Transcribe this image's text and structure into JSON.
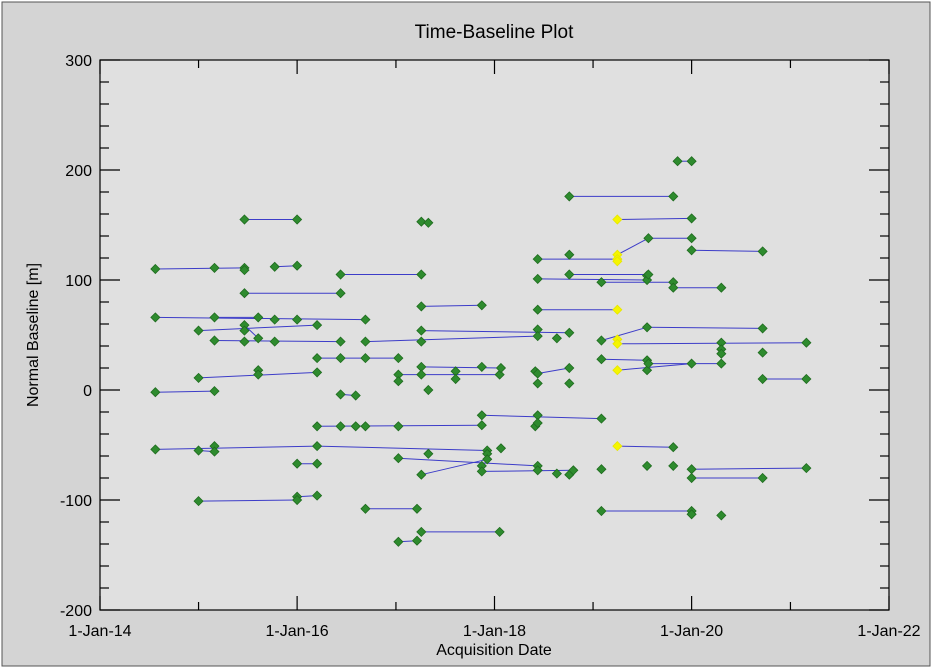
{
  "chart_data": {
    "type": "scatter",
    "title": "Time-Baseline Plot",
    "xlabel": "Acquisition Date",
    "ylabel": "Normal Baseline [m]",
    "x_axis": {
      "type": "date",
      "range": [
        "2014-01-01",
        "2022-01-01"
      ],
      "tick_labels": [
        {
          "date": "2014-01-01",
          "label": "1-Jan-14"
        },
        {
          "date": "2016-01-01",
          "label": "1-Jan-16"
        },
        {
          "date": "2018-01-01",
          "label": "1-Jan-18"
        },
        {
          "date": "2020-01-01",
          "label": "1-Jan-20"
        },
        {
          "date": "2022-01-01",
          "label": "1-Jan-22"
        }
      ]
    },
    "y_axis": {
      "range": [
        -200,
        300
      ],
      "ticks": [
        -200,
        -100,
        0,
        100,
        200,
        300
      ]
    },
    "grid": false,
    "colors": {
      "acquisition": "#2e8b2e",
      "reference": "#f5f500",
      "connection": "#3c3cc8",
      "plot_background": "#e0e0e0",
      "panel_background": "#d4d4d4"
    },
    "acquisitions": [
      [
        "2014-07-25",
        110
      ],
      [
        "2014-07-25",
        66
      ],
      [
        "2014-07-25",
        -2
      ],
      [
        "2014-07-25",
        -54
      ],
      [
        "2015-01-01",
        54
      ],
      [
        "2015-01-01",
        11
      ],
      [
        "2015-01-01",
        -55
      ],
      [
        "2015-01-01",
        -101
      ],
      [
        "2015-03-01",
        111
      ],
      [
        "2015-03-01",
        66
      ],
      [
        "2015-03-01",
        45
      ],
      [
        "2015-03-01",
        -1
      ],
      [
        "2015-03-01",
        -51
      ],
      [
        "2015-03-01",
        -56
      ],
      [
        "2015-06-20",
        155
      ],
      [
        "2015-06-20",
        111
      ],
      [
        "2015-06-20",
        109
      ],
      [
        "2015-06-20",
        88
      ],
      [
        "2015-06-20",
        59
      ],
      [
        "2015-06-20",
        54
      ],
      [
        "2015-06-20",
        44
      ],
      [
        "2015-08-10",
        66
      ],
      [
        "2015-08-10",
        47
      ],
      [
        "2015-08-10",
        18
      ],
      [
        "2015-08-10",
        14
      ],
      [
        "2015-10-10",
        112
      ],
      [
        "2015-10-10",
        64
      ],
      [
        "2015-10-10",
        44
      ],
      [
        "2016-01-01",
        155
      ],
      [
        "2016-01-01",
        113
      ],
      [
        "2016-01-01",
        64
      ],
      [
        "2016-01-01",
        -67
      ],
      [
        "2016-01-01",
        -97
      ],
      [
        "2016-01-01",
        -100
      ],
      [
        "2016-03-15",
        59
      ],
      [
        "2016-03-15",
        29
      ],
      [
        "2016-03-15",
        16
      ],
      [
        "2016-03-15",
        -33
      ],
      [
        "2016-03-15",
        -51
      ],
      [
        "2016-03-15",
        -67
      ],
      [
        "2016-03-15",
        -96
      ],
      [
        "2016-06-10",
        105
      ],
      [
        "2016-06-10",
        88
      ],
      [
        "2016-06-10",
        44
      ],
      [
        "2016-06-10",
        29
      ],
      [
        "2016-06-10",
        -4
      ],
      [
        "2016-06-10",
        -33
      ],
      [
        "2016-08-05",
        -5
      ],
      [
        "2016-08-05",
        -33
      ],
      [
        "2016-09-10",
        64
      ],
      [
        "2016-09-10",
        44
      ],
      [
        "2016-09-10",
        29
      ],
      [
        "2016-09-10",
        -33
      ],
      [
        "2016-09-10",
        -108
      ],
      [
        "2017-01-10",
        29
      ],
      [
        "2017-01-10",
        14
      ],
      [
        "2017-01-10",
        8
      ],
      [
        "2017-01-10",
        -33
      ],
      [
        "2017-01-10",
        -62
      ],
      [
        "2017-01-10",
        -138
      ],
      [
        "2017-03-20",
        -108
      ],
      [
        "2017-03-20",
        -137
      ],
      [
        "2017-04-05",
        153
      ],
      [
        "2017-04-05",
        105
      ],
      [
        "2017-04-05",
        76
      ],
      [
        "2017-04-05",
        54
      ],
      [
        "2017-04-05",
        44
      ],
      [
        "2017-04-05",
        21
      ],
      [
        "2017-04-05",
        14
      ],
      [
        "2017-04-05",
        -77
      ],
      [
        "2017-04-05",
        -129
      ],
      [
        "2017-05-01",
        152
      ],
      [
        "2017-05-01",
        0
      ],
      [
        "2017-05-01",
        -58
      ],
      [
        "2017-08-10",
        17
      ],
      [
        "2017-08-10",
        10
      ],
      [
        "2017-11-15",
        77
      ],
      [
        "2017-11-15",
        21
      ],
      [
        "2017-11-15",
        -23
      ],
      [
        "2017-11-15",
        -32
      ],
      [
        "2017-11-15",
        -69
      ],
      [
        "2017-11-15",
        -74
      ],
      [
        "2017-12-05",
        -55
      ],
      [
        "2017-12-05",
        -58
      ],
      [
        "2017-12-05",
        -63
      ],
      [
        "2018-01-20",
        14
      ],
      [
        "2018-01-20",
        -129
      ],
      [
        "2018-01-25",
        20
      ],
      [
        "2018-01-25",
        -53
      ],
      [
        "2018-06-01",
        17
      ],
      [
        "2018-06-01",
        -33
      ],
      [
        "2018-06-10",
        119
      ],
      [
        "2018-06-10",
        101
      ],
      [
        "2018-06-10",
        73
      ],
      [
        "2018-06-10",
        55
      ],
      [
        "2018-06-10",
        49
      ],
      [
        "2018-06-10",
        15
      ],
      [
        "2018-06-10",
        6
      ],
      [
        "2018-06-10",
        -23
      ],
      [
        "2018-06-10",
        -30
      ],
      [
        "2018-06-10",
        -69
      ],
      [
        "2018-06-10",
        -73
      ],
      [
        "2018-08-20",
        47
      ],
      [
        "2018-08-20",
        -76
      ],
      [
        "2018-10-05",
        176
      ],
      [
        "2018-10-05",
        123
      ],
      [
        "2018-10-05",
        105
      ],
      [
        "2018-10-05",
        52
      ],
      [
        "2018-10-05",
        20
      ],
      [
        "2018-10-05",
        6
      ],
      [
        "2018-10-05",
        -77
      ],
      [
        "2018-10-20",
        -73
      ],
      [
        "2019-02-01",
        98
      ],
      [
        "2019-02-01",
        45
      ],
      [
        "2019-02-01",
        28
      ],
      [
        "2019-02-01",
        -26
      ],
      [
        "2019-02-01",
        -72
      ],
      [
        "2019-02-01",
        -110
      ],
      [
        "2019-07-20",
        27
      ],
      [
        "2019-07-20",
        104
      ],
      [
        "2019-07-20",
        100
      ],
      [
        "2019-07-20",
        57
      ],
      [
        "2019-07-20",
        18
      ],
      [
        "2019-07-20",
        -69
      ],
      [
        "2019-07-25",
        24
      ],
      [
        "2019-07-25",
        105
      ],
      [
        "2019-07-25",
        138
      ],
      [
        "2019-10-25",
        176
      ],
      [
        "2019-10-25",
        98
      ],
      [
        "2019-10-25",
        93
      ],
      [
        "2019-10-25",
        -52
      ],
      [
        "2019-10-25",
        -69
      ],
      [
        "2019-11-10",
        208
      ],
      [
        "2020-01-01",
        208
      ],
      [
        "2020-01-01",
        156
      ],
      [
        "2020-01-01",
        138
      ],
      [
        "2020-01-01",
        127
      ],
      [
        "2020-01-01",
        24
      ],
      [
        "2020-01-01",
        -72
      ],
      [
        "2020-01-01",
        -80
      ],
      [
        "2020-01-01",
        -110
      ],
      [
        "2020-01-01",
        -113
      ],
      [
        "2020-04-20",
        93
      ],
      [
        "2020-04-20",
        43
      ],
      [
        "2020-04-20",
        37
      ],
      [
        "2020-04-20",
        33
      ],
      [
        "2020-04-20",
        24
      ],
      [
        "2020-04-20",
        -114
      ],
      [
        "2020-09-20",
        126
      ],
      [
        "2020-09-20",
        56
      ],
      [
        "2020-09-20",
        34
      ],
      [
        "2020-09-20",
        10
      ],
      [
        "2020-09-20",
        -80
      ],
      [
        "2021-03-01",
        43
      ],
      [
        "2021-03-01",
        10
      ],
      [
        "2021-03-01",
        -71
      ]
    ],
    "reference_acquisitions": [
      [
        "2019-04-01",
        155
      ],
      [
        "2019-04-01",
        123
      ],
      [
        "2019-04-01",
        119
      ],
      [
        "2019-04-01",
        117
      ],
      [
        "2019-04-01",
        73
      ],
      [
        "2019-04-01",
        46
      ],
      [
        "2019-04-01",
        42
      ],
      [
        "2019-04-01",
        18
      ],
      [
        "2019-04-01",
        -51
      ]
    ],
    "connections": [
      [
        [
          "2014-07-25",
          110
        ],
        [
          "2015-06-20",
          111
        ]
      ],
      [
        [
          "2014-07-25",
          66
        ],
        [
          "2016-09-10",
          64
        ]
      ],
      [
        [
          "2014-07-25",
          -2
        ],
        [
          "2015-03-01",
          -1
        ]
      ],
      [
        [
          "2014-07-25",
          -54
        ],
        [
          "2016-03-15",
          -51
        ]
      ],
      [
        [
          "2015-01-01",
          54
        ],
        [
          "2016-03-15",
          59
        ]
      ],
      [
        [
          "2015-01-01",
          11
        ],
        [
          "2016-03-15",
          16
        ]
      ],
      [
        [
          "2015-01-01",
          -55
        ],
        [
          "2015-03-01",
          -56
        ]
      ],
      [
        [
          "2015-01-01",
          -101
        ],
        [
          "2016-01-01",
          -100
        ]
      ],
      [
        [
          "2015-03-01",
          66
        ],
        [
          "2015-08-10",
          66
        ]
      ],
      [
        [
          "2015-03-01",
          45
        ],
        [
          "2016-06-10",
          44
        ]
      ],
      [
        [
          "2015-06-20",
          155
        ],
        [
          "2016-01-01",
          155
        ]
      ],
      [
        [
          "2015-06-20",
          88
        ],
        [
          "2016-06-10",
          88
        ]
      ],
      [
        [
          "2015-06-20",
          59
        ],
        [
          "2015-08-10",
          47
        ]
      ],
      [
        [
          "2015-10-10",
          112
        ],
        [
          "2016-01-01",
          113
        ]
      ],
      [
        [
          "2016-01-01",
          -67
        ],
        [
          "2016-03-15",
          -67
        ]
      ],
      [
        [
          "2016-01-01",
          -97
        ],
        [
          "2016-03-15",
          -96
        ]
      ],
      [
        [
          "2016-03-15",
          29
        ],
        [
          "2016-09-10",
          29
        ]
      ],
      [
        [
          "2016-03-15",
          -33
        ],
        [
          "2017-11-15",
          -32
        ]
      ],
      [
        [
          "2016-03-15",
          -51
        ],
        [
          "2017-12-05",
          -55
        ]
      ],
      [
        [
          "2016-06-10",
          105
        ],
        [
          "2017-04-05",
          105
        ]
      ],
      [
        [
          "2016-06-10",
          -4
        ],
        [
          "2016-08-05",
          -5
        ]
      ],
      [
        [
          "2016-09-10",
          44
        ],
        [
          "2018-06-10",
          49
        ]
      ],
      [
        [
          "2016-09-10",
          -108
        ],
        [
          "2017-03-20",
          -108
        ]
      ],
      [
        [
          "2017-01-10",
          29
        ],
        [
          "2016-09-10",
          29
        ]
      ],
      [
        [
          "2017-01-10",
          14
        ],
        [
          "2018-01-20",
          14
        ]
      ],
      [
        [
          "2017-01-10",
          -62
        ],
        [
          "2018-06-10",
          -69
        ]
      ],
      [
        [
          "2017-01-10",
          -138
        ],
        [
          "2017-03-20",
          -137
        ]
      ],
      [
        [
          "2017-04-05",
          153
        ],
        [
          "2017-05-01",
          152
        ]
      ],
      [
        [
          "2017-04-05",
          76
        ],
        [
          "2017-11-15",
          77
        ]
      ],
      [
        [
          "2017-04-05",
          54
        ],
        [
          "2018-10-05",
          52
        ]
      ],
      [
        [
          "2017-04-05",
          21
        ],
        [
          "2018-01-25",
          20
        ]
      ],
      [
        [
          "2017-04-05",
          -77
        ],
        [
          "2017-12-05",
          -63
        ]
      ],
      [
        [
          "2017-04-05",
          -129
        ],
        [
          "2018-01-20",
          -129
        ]
      ],
      [
        [
          "2017-11-15",
          -23
        ],
        [
          "2019-02-01",
          -26
        ]
      ],
      [
        [
          "2017-11-15",
          -74
        ],
        [
          "2018-10-20",
          -73
        ]
      ],
      [
        [
          "2018-06-10",
          119
        ],
        [
          "2019-04-01",
          119
        ]
      ],
      [
        [
          "2018-06-10",
          101
        ],
        [
          "2019-07-20",
          100
        ]
      ],
      [
        [
          "2018-06-10",
          73
        ],
        [
          "2019-04-01",
          73
        ]
      ],
      [
        [
          "2018-06-10",
          15
        ],
        [
          "2018-10-05",
          20
        ]
      ],
      [
        [
          "2018-10-05",
          176
        ],
        [
          "2019-10-25",
          176
        ]
      ],
      [
        [
          "2018-10-05",
          105
        ],
        [
          "2019-07-25",
          105
        ]
      ],
      [
        [
          "2019-02-01",
          98
        ],
        [
          "2019-10-25",
          98
        ]
      ],
      [
        [
          "2019-02-01",
          45
        ],
        [
          "2019-07-20",
          57
        ]
      ],
      [
        [
          "2019-02-01",
          28
        ],
        [
          "2019-07-20",
          27
        ]
      ],
      [
        [
          "2019-02-01",
          -110
        ],
        [
          "2020-01-01",
          -110
        ]
      ],
      [
        [
          "2019-04-01",
          155
        ],
        [
          "2020-01-01",
          156
        ]
      ],
      [
        [
          "2019-04-01",
          123
        ],
        [
          "2019-07-25",
          138
        ]
      ],
      [
        [
          "2019-04-01",
          42
        ],
        [
          "2021-03-01",
          43
        ]
      ],
      [
        [
          "2019-04-01",
          18
        ],
        [
          "2020-01-01",
          24
        ]
      ],
      [
        [
          "2019-04-01",
          -51
        ],
        [
          "2019-10-25",
          -52
        ]
      ],
      [
        [
          "2019-07-20",
          57
        ],
        [
          "2020-09-20",
          56
        ]
      ],
      [
        [
          "2019-07-25",
          138
        ],
        [
          "2020-01-01",
          138
        ]
      ],
      [
        [
          "2019-10-25",
          93
        ],
        [
          "2020-04-20",
          93
        ]
      ],
      [
        [
          "2019-11-10",
          208
        ],
        [
          "2020-01-01",
          208
        ]
      ],
      [
        [
          "2020-01-01",
          127
        ],
        [
          "2020-09-20",
          126
        ]
      ],
      [
        [
          "2020-01-01",
          -72
        ],
        [
          "2021-03-01",
          -71
        ]
      ],
      [
        [
          "2020-01-01",
          -80
        ],
        [
          "2020-09-20",
          -80
        ]
      ],
      [
        [
          "2020-04-20",
          24
        ],
        [
          "2019-07-25",
          24
        ]
      ],
      [
        [
          "2020-09-20",
          10
        ],
        [
          "2021-03-01",
          10
        ]
      ]
    ]
  }
}
